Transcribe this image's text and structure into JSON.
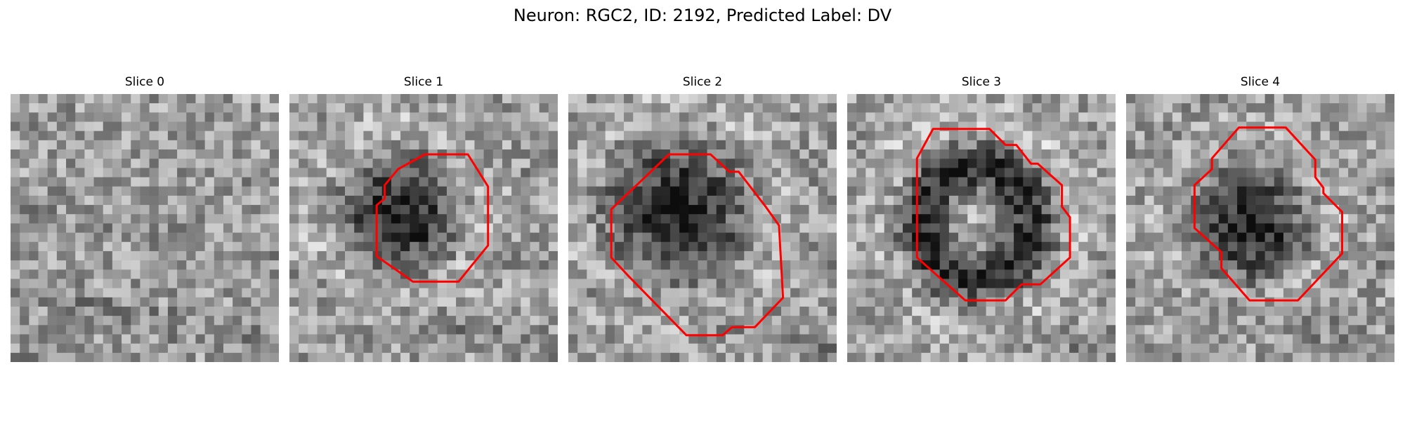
{
  "figure": {
    "title": "Neuron: RGC2, ID: 2192, Predicted Label: DV"
  },
  "panels": [
    {
      "title": "Slice 0",
      "has_contour": false
    },
    {
      "title": "Slice 1",
      "has_contour": true
    },
    {
      "title": "Slice 2",
      "has_contour": true
    },
    {
      "title": "Slice 3",
      "has_contour": true
    },
    {
      "title": "Slice 4",
      "has_contour": true
    }
  ],
  "colors": {
    "contour": "#ff0000",
    "background": "#ffffff"
  },
  "colormap": "grayscale"
}
